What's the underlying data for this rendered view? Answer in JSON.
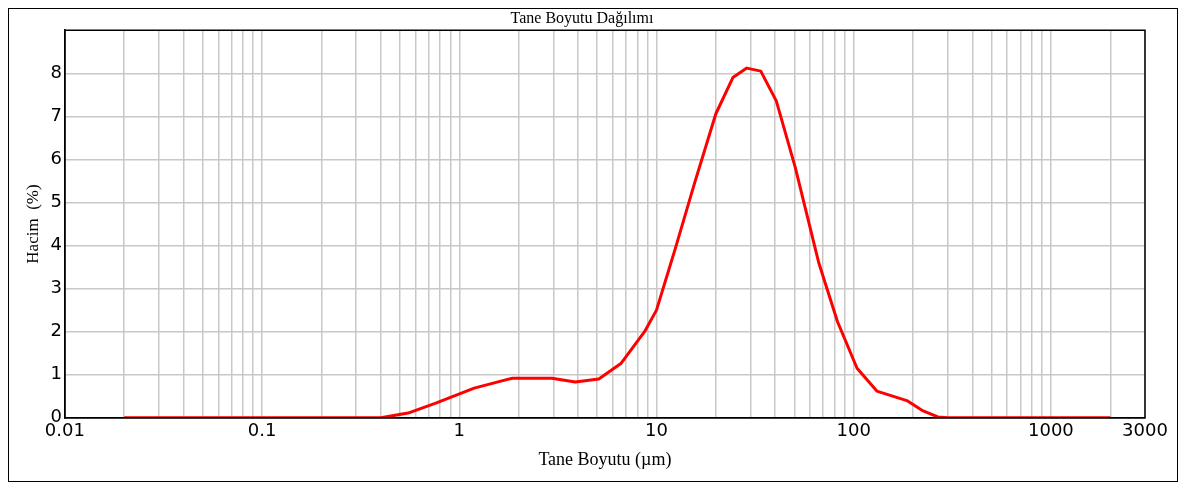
{
  "chart_data": {
    "type": "line",
    "title": "Tane Boyutu Dağılımı",
    "xlabel": "Tane Boyutu (µm)",
    "ylabel": "Hacim  (%)",
    "log": "x",
    "grid": true,
    "legend": false,
    "marker": "none",
    "line_style": "solid",
    "xlim": [
      0.01,
      3000
    ],
    "ylim": [
      0,
      9
    ],
    "xticks": [
      0.01,
      {
        "value": 0.02,
        "label": null
      },
      {
        "value": 0.03,
        "label": null
      },
      {
        "value": 0.04,
        "label": null
      },
      {
        "value": 0.05,
        "label": null
      },
      {
        "value": 0.06,
        "label": null
      },
      {
        "value": 0.07,
        "label": null
      },
      {
        "value": 0.08,
        "label": null
      },
      {
        "value": 0.09,
        "label": null
      },
      0.1,
      {
        "value": 0.2,
        "label": null
      },
      {
        "value": 0.3,
        "label": null
      },
      {
        "value": 0.4,
        "label": null
      },
      {
        "value": 0.5,
        "label": null
      },
      {
        "value": 0.6,
        "label": null
      },
      {
        "value": 0.7,
        "label": null
      },
      {
        "value": 0.8,
        "label": null
      },
      {
        "value": 0.9,
        "label": null
      },
      1,
      {
        "value": 2,
        "label": null
      },
      {
        "value": 3,
        "label": null
      },
      {
        "value": 4,
        "label": null
      },
      {
        "value": 5,
        "label": null
      },
      {
        "value": 6,
        "label": null
      },
      {
        "value": 7,
        "label": null
      },
      {
        "value": 8,
        "label": null
      },
      {
        "value": 9,
        "label": null
      },
      10,
      {
        "value": 20,
        "label": null
      },
      {
        "value": 30,
        "label": null
      },
      {
        "value": 40,
        "label": null
      },
      {
        "value": 50,
        "label": null
      },
      {
        "value": 60,
        "label": null
      },
      {
        "value": 70,
        "label": null
      },
      {
        "value": 80,
        "label": null
      },
      {
        "value": 90,
        "label": null
      },
      100,
      {
        "value": 200,
        "label": null
      },
      {
        "value": 300,
        "label": null
      },
      {
        "value": 400,
        "label": null
      },
      {
        "value": 500,
        "label": null
      },
      {
        "value": 600,
        "label": null
      },
      {
        "value": 700,
        "label": null
      },
      {
        "value": 800,
        "label": null
      },
      {
        "value": 900,
        "label": null
      },
      1000,
      {
        "value": 2000,
        "label": null
      },
      3000
    ],
    "yticks": [
      0,
      1,
      2,
      3,
      4,
      5,
      6,
      7,
      8
    ],
    "series": [
      {
        "color": "#ff0000",
        "x": [
          0.02,
          0.4,
          0.55,
          0.76,
          1.19,
          1.86,
          2.95,
          3.87,
          5.1,
          6.6,
          8.7,
          10,
          12.4,
          15.6,
          20,
          24.4,
          28.7,
          33.8,
          40.5,
          50.5,
          66.5,
          82.8,
          104,
          131,
          186,
          225,
          267,
          300,
          2000
        ],
        "values": [
          0,
          0,
          0.11,
          0.34,
          0.69,
          0.92,
          0.92,
          0.83,
          0.9,
          1.26,
          2.0,
          2.5,
          3.9,
          5.45,
          7.06,
          7.9,
          8.12,
          8.05,
          7.36,
          5.82,
          3.6,
          2.23,
          1.15,
          0.62,
          0.4,
          0.16,
          0.02,
          0,
          0
        ]
      }
    ]
  }
}
